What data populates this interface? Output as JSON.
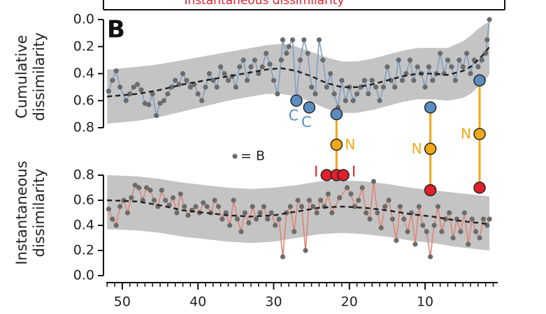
{
  "chart_data": {
    "type": "line",
    "header": "Instantaneous dissimilarity",
    "panel_label": "B",
    "legend": {
      "label": "= B",
      "color": "#6b6b6b"
    },
    "xlim": [
      52.3,
      0.4
    ],
    "xticks": [
      50,
      40,
      30,
      20,
      10
    ],
    "xminorticks": [
      52,
      51,
      49,
      48,
      47,
      46,
      45,
      44,
      43,
      42,
      41,
      39,
      38,
      37,
      36,
      35,
      34,
      33,
      32,
      31,
      29,
      28,
      27,
      26,
      25,
      24,
      23,
      22,
      21,
      19,
      18,
      17,
      16,
      15,
      14,
      13,
      12,
      11,
      9,
      8,
      7,
      6,
      5,
      4,
      3,
      2,
      1
    ],
    "point_color": "#6b6b6b",
    "band_color": "#c4c4c4",
    "trend_color": "#222222",
    "panels": [
      {
        "ylabel": [
          "Cumulative",
          "dissimilarity"
        ],
        "ylim": [
          0.8,
          0
        ],
        "yticks": [
          0.0,
          0.2,
          0.4,
          0.6,
          0.8
        ],
        "line_color": "#7f9fc4",
        "x": [
          51.8,
          51.3,
          50.8,
          50.3,
          49.5,
          49,
          48.5,
          48,
          47.5,
          47,
          46.5,
          46,
          45.5,
          45,
          44.5,
          44,
          43.5,
          43,
          42.5,
          42,
          41.5,
          41,
          40.5,
          40,
          39.5,
          39,
          38.5,
          38,
          37.5,
          37,
          36.5,
          36,
          35.5,
          35,
          34.5,
          34,
          33.5,
          33,
          32.5,
          32,
          31.5,
          31,
          30.5,
          30,
          29.5,
          29,
          28.8,
          28.3,
          28,
          27.5,
          27,
          26.5,
          26,
          25.5,
          25,
          24.5,
          24,
          23.5,
          23,
          22.5,
          22,
          21.5,
          21,
          20.5,
          20,
          19.5,
          19,
          18.5,
          18,
          17.5,
          17,
          16.5,
          16,
          15.5,
          15,
          14.5,
          14,
          13.5,
          13,
          12.5,
          12,
          11.5,
          11,
          10.5,
          10,
          9.5,
          9,
          8.5,
          8,
          7.5,
          7,
          6.5,
          6,
          5.5,
          5,
          4.5,
          4,
          3.5,
          3,
          2.5,
          2,
          1.8,
          1.5
        ],
        "values": [
          0.53,
          0.45,
          0.38,
          0.5,
          0.6,
          0.55,
          0.5,
          0.48,
          0.52,
          0.62,
          0.63,
          0.55,
          0.71,
          0.62,
          0.6,
          0.55,
          0.5,
          0.45,
          0.48,
          0.4,
          0.45,
          0.5,
          0.48,
          0.55,
          0.6,
          0.5,
          0.4,
          0.45,
          0.5,
          0.35,
          0.4,
          0.45,
          0.42,
          0.5,
          0.35,
          0.3,
          0.45,
          0.35,
          0.3,
          0.4,
          0.35,
          0.25,
          0.33,
          0.45,
          0.55,
          0.3,
          0.15,
          0.25,
          0.2,
          0.15,
          0.6,
          0.3,
          0.15,
          0.25,
          0.5,
          0.55,
          0.15,
          0.3,
          0.5,
          0.4,
          0.55,
          0.65,
          0.45,
          0.6,
          0.5,
          0.6,
          0.55,
          0.5,
          0.45,
          0.55,
          0.45,
          0.5,
          0.6,
          0.5,
          0.35,
          0.45,
          0.5,
          0.3,
          0.45,
          0.4,
          0.3,
          0.45,
          0.35,
          0.4,
          0.5,
          0.35,
          0.45,
          0.4,
          0.25,
          0.4,
          0.3,
          0.35,
          0.45,
          0.3,
          0.35,
          0.25,
          0.4,
          0.3,
          0.35,
          0.3,
          0.25,
          0.15,
          0.0
        ],
        "trend": {
          "x": [
            52,
            48,
            45,
            42,
            39,
            36,
            33,
            31,
            29,
            27,
            25,
            23,
            21,
            19,
            17,
            15,
            13,
            11,
            9,
            7,
            5,
            4,
            3,
            2,
            1.5
          ],
          "values": [
            0.57,
            0.55,
            0.52,
            0.48,
            0.45,
            0.42,
            0.39,
            0.37,
            0.36,
            0.38,
            0.42,
            0.47,
            0.5,
            0.5,
            0.48,
            0.45,
            0.42,
            0.4,
            0.4,
            0.41,
            0.38,
            0.35,
            0.3,
            0.24,
            0.2
          ]
        },
        "band": {
          "x": [
            52,
            48,
            45,
            42,
            39,
            36,
            33,
            31,
            29,
            27,
            25,
            23,
            21,
            19,
            17,
            15,
            13,
            11,
            9,
            7,
            5,
            4,
            3,
            2,
            1.5
          ],
          "lower": [
            0.37,
            0.35,
            0.33,
            0.3,
            0.27,
            0.24,
            0.21,
            0.19,
            0.18,
            0.2,
            0.24,
            0.28,
            0.31,
            0.31,
            0.29,
            0.26,
            0.23,
            0.21,
            0.21,
            0.21,
            0.16,
            0.12,
            0.07,
            0.03,
            0.02
          ],
          "upper": [
            0.77,
            0.75,
            0.72,
            0.68,
            0.64,
            0.6,
            0.57,
            0.55,
            0.55,
            0.57,
            0.61,
            0.66,
            0.69,
            0.69,
            0.67,
            0.64,
            0.61,
            0.59,
            0.59,
            0.6,
            0.58,
            0.55,
            0.5,
            0.45,
            0.4
          ]
        },
        "highlight_color": "#5b8ec0",
        "highlights": [
          {
            "x": 27,
            "value": 0.6,
            "label": "C"
          },
          {
            "x": 25.3,
            "value": 0.65,
            "label": "C"
          },
          {
            "x": 21.7,
            "value": 0.7
          },
          {
            "x": 9.3,
            "value": 0.65
          },
          {
            "x": 2.8,
            "value": 0.45
          }
        ]
      },
      {
        "ylabel": [
          "Instantaneous",
          "dissimilarity"
        ],
        "ylim": [
          0,
          0.8
        ],
        "yticks": [
          0.0,
          0.2,
          0.4,
          0.6,
          0.8
        ],
        "line_color": "#e08474",
        "x": [
          51.8,
          51.3,
          50.8,
          50.3,
          49.8,
          49.3,
          48.8,
          48.3,
          47.8,
          47.3,
          46.8,
          46.3,
          45.8,
          45.3,
          44.8,
          44.3,
          43.8,
          43.3,
          42.8,
          42.3,
          41.8,
          41.3,
          40.8,
          40.3,
          39.8,
          39.3,
          38.8,
          38.3,
          37.8,
          37.3,
          36.8,
          36.3,
          35.8,
          35.3,
          34.8,
          34.3,
          33.8,
          33.3,
          32.8,
          32.3,
          31.8,
          31.3,
          30.8,
          30.3,
          29.8,
          29.3,
          28.8,
          28.3,
          27.8,
          27.3,
          26.8,
          26.3,
          25.8,
          25.3,
          24.8,
          24.3,
          23.8,
          23.3,
          22.8,
          22.3,
          21.3,
          20.3,
          19.8,
          19.3,
          18.8,
          18.3,
          17.8,
          17.3,
          16.8,
          16.3,
          15.8,
          15.3,
          14.8,
          14.3,
          13.8,
          13.3,
          12.8,
          12.3,
          11.8,
          11.3,
          10.8,
          10.3,
          9.8,
          9.3,
          8.8,
          8.3,
          7.8,
          7.3,
          6.8,
          6.3,
          5.8,
          5.3,
          4.8,
          4.3,
          3.8,
          3.3,
          2.8,
          2.3,
          1.8,
          1.5
        ],
        "values": [
          0.53,
          0.45,
          0.4,
          0.55,
          0.6,
          0.5,
          0.62,
          0.72,
          0.7,
          0.6,
          0.7,
          0.68,
          0.6,
          0.55,
          0.68,
          0.6,
          0.56,
          0.62,
          0.5,
          0.65,
          0.55,
          0.48,
          0.52,
          0.55,
          0.5,
          0.58,
          0.55,
          0.5,
          0.6,
          0.55,
          0.45,
          0.5,
          0.4,
          0.6,
          0.45,
          0.35,
          0.5,
          0.42,
          0.55,
          0.45,
          0.5,
          0.55,
          0.45,
          0.5,
          0.4,
          0.45,
          0.15,
          0.5,
          0.55,
          0.35,
          0.6,
          0.55,
          0.2,
          0.6,
          0.55,
          0.5,
          0.6,
          0.55,
          0.65,
          0.5,
          0.62,
          0.7,
          0.65,
          0.55,
          0.6,
          0.7,
          0.5,
          0.45,
          0.75,
          0.5,
          0.38,
          0.55,
          0.6,
          0.45,
          0.28,
          0.55,
          0.45,
          0.35,
          0.5,
          0.25,
          0.55,
          0.4,
          0.35,
          0.15,
          0.4,
          0.55,
          0.35,
          0.45,
          0.5,
          0.3,
          0.45,
          0.35,
          0.5,
          0.25,
          0.45,
          0.35,
          0.3,
          0.45,
          0.4,
          0.45
        ],
        "trend": {
          "x": [
            52,
            48,
            45,
            42,
            39,
            36,
            33,
            30,
            27,
            24,
            21,
            18,
            15,
            12,
            9,
            6,
            3,
            1.5
          ],
          "values": [
            0.6,
            0.59,
            0.56,
            0.52,
            0.5,
            0.48,
            0.47,
            0.48,
            0.51,
            0.54,
            0.55,
            0.54,
            0.52,
            0.49,
            0.47,
            0.44,
            0.42,
            0.41
          ]
        },
        "band": {
          "x": [
            52,
            48,
            45,
            42,
            39,
            36,
            33,
            30,
            27,
            24,
            21,
            18,
            15,
            12,
            9,
            6,
            3,
            1.5
          ],
          "lower": [
            0.37,
            0.36,
            0.34,
            0.31,
            0.29,
            0.27,
            0.26,
            0.27,
            0.3,
            0.33,
            0.34,
            0.33,
            0.31,
            0.28,
            0.26,
            0.23,
            0.21,
            0.2
          ],
          "upper": [
            0.8,
            0.79,
            0.77,
            0.74,
            0.72,
            0.7,
            0.69,
            0.7,
            0.72,
            0.75,
            0.76,
            0.75,
            0.73,
            0.7,
            0.68,
            0.66,
            0.64,
            0.63
          ]
        },
        "highlight_color": "#e0202a",
        "highlights": [
          {
            "x": 23,
            "value": 0.8,
            "label": "I"
          },
          {
            "x": 21.7,
            "value": 0.8
          },
          {
            "x": 20.8,
            "value": 0.8,
            "label": "I"
          },
          {
            "x": 9.3,
            "value": 0.68
          },
          {
            "x": 2.8,
            "value": 0.7
          }
        ]
      }
    ],
    "connectors": {
      "label": "N",
      "color": "#f0a818",
      "x": [
        21.7,
        9.3,
        2.8
      ]
    }
  }
}
